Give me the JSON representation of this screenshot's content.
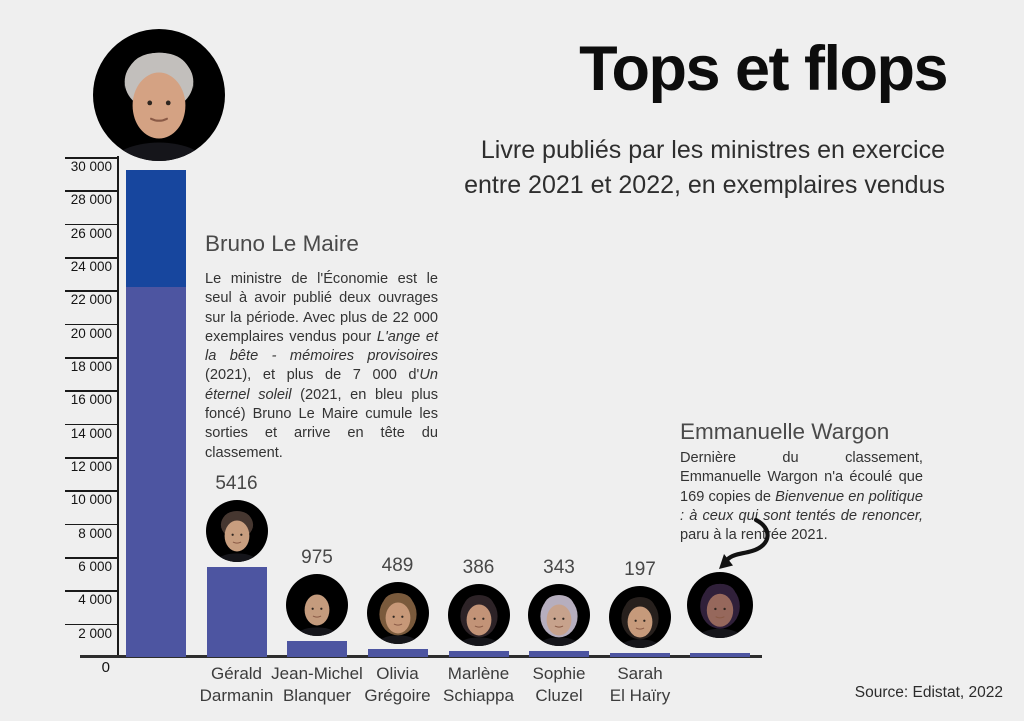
{
  "header": {
    "title": "Tops et flops",
    "subtitle_line1": "Livre publiés par les ministres en exercice",
    "subtitle_line2": "entre 2021 et 2022, en exemplaires vendus"
  },
  "source": {
    "label": "Source: Edistat, 2022"
  },
  "annotations": {
    "bruno": {
      "heading": "Bruno Le Maire",
      "paragraph": [
        {
          "t": "Le ministre de l'Économie est le seul à avoir publié deux ouvrages sur la période. Avec plus de 22 000 exemplaires vendus pour ",
          "i": false
        },
        {
          "t": "L'ange et la bête - mémoires provisoires",
          "i": true
        },
        {
          "t": " (2021), et plus de 7 000 d'",
          "i": false
        },
        {
          "t": "Un éternel soleil",
          "i": true
        },
        {
          "t": " (2021, en bleu plus foncé) Bruno Le Maire cumule les sorties et arrive en tête du classement.",
          "i": false
        }
      ]
    },
    "wargon": {
      "heading": "Emmanuelle Wargon",
      "paragraph": [
        {
          "t": "Dernière du classement, Emmanuelle Wargon n'a écoulé que 169 copies de ",
          "i": false
        },
        {
          "t": "Bienvenue en politique : à ceux qui sont tentés de renoncer,",
          "i": true
        },
        {
          "t": " paru à la rentrée 2021.",
          "i": false
        }
      ]
    }
  },
  "chart_data": {
    "type": "bar",
    "title": "Tops et flops",
    "subtitle": "Livre publiés par les ministres en exercice entre 2021 et 2022, en exemplaires vendus",
    "xlabel": "",
    "ylabel": "exemplaires vendus",
    "ylim": [
      0,
      30000
    ],
    "grid": false,
    "legend_position": "none",
    "origin_label": "0",
    "y_ticks": [
      {
        "v": 30000,
        "label": "30 000"
      },
      {
        "v": 28000,
        "label": "28 000"
      },
      {
        "v": 26000,
        "label": "26 000"
      },
      {
        "v": 24000,
        "label": "24 000"
      },
      {
        "v": 22000,
        "label": "22 000"
      },
      {
        "v": 20000,
        "label": "20 000"
      },
      {
        "v": 18000,
        "label": "18 000"
      },
      {
        "v": 16000,
        "label": "16 000"
      },
      {
        "v": 14000,
        "label": "14 000"
      },
      {
        "v": 12000,
        "label": "12 000"
      },
      {
        "v": 10000,
        "label": "10 000"
      },
      {
        "v": 8000,
        "label": "8 000"
      },
      {
        "v": 6000,
        "label": "6 000"
      },
      {
        "v": 4000,
        "label": "4 000"
      },
      {
        "v": 2000,
        "label": "2 000"
      }
    ],
    "colors": {
      "bar_light": "#4d55a1",
      "bar_dark": "#17469e",
      "axis": "#1a1a1a",
      "background": "#efefef"
    },
    "categories": [
      "Bruno Le Maire",
      "Gérald Darmanin",
      "Jean-Michel Blanquer",
      "Olivia Grégoire",
      "Marlène Schiappa",
      "Sophie Cluzel",
      "Sarah El Haïry",
      "Emmanuelle Wargon"
    ],
    "values": [
      29200,
      5416,
      975,
      489,
      386,
      343,
      197,
      169
    ],
    "bars": [
      {
        "name": "Bruno Le Maire",
        "label_lines": [],
        "value_label": "",
        "segments": [
          {
            "value": 22200,
            "color": "light",
            "book": "L'ange et la bête - mémoires provisoires (2021)"
          },
          {
            "value": 7000,
            "color": "dark",
            "book": "Un éternel soleil (2021)"
          }
        ]
      },
      {
        "name": "Gérald Darmanin",
        "label_lines": [
          "Gérald",
          "Darmanin"
        ],
        "value_label": "5416",
        "segments": [
          {
            "value": 5416,
            "color": "light"
          }
        ]
      },
      {
        "name": "Jean-Michel Blanquer",
        "label_lines": [
          "Jean-Michel",
          "Blanquer"
        ],
        "value_label": "975",
        "segments": [
          {
            "value": 975,
            "color": "light"
          }
        ]
      },
      {
        "name": "Olivia Grégoire",
        "label_lines": [
          "Olivia",
          "Grégoire"
        ],
        "value_label": "489",
        "segments": [
          {
            "value": 489,
            "color": "light"
          }
        ]
      },
      {
        "name": "Marlène Schiappa",
        "label_lines": [
          "Marlène",
          "Schiappa"
        ],
        "value_label": "386",
        "segments": [
          {
            "value": 386,
            "color": "light"
          }
        ]
      },
      {
        "name": "Sophie Cluzel",
        "label_lines": [
          "Sophie",
          "Cluzel"
        ],
        "value_label": "343",
        "segments": [
          {
            "value": 343,
            "color": "light"
          }
        ]
      },
      {
        "name": "Sarah El Haïry",
        "label_lines": [
          "Sarah",
          "El Haïry"
        ],
        "value_label": "197",
        "segments": [
          {
            "value": 197,
            "color": "light"
          }
        ]
      },
      {
        "name": "Emmanuelle Wargon",
        "label_lines": [],
        "value_label": "",
        "segments": [
          {
            "value": 169,
            "color": "light"
          }
        ]
      }
    ]
  }
}
